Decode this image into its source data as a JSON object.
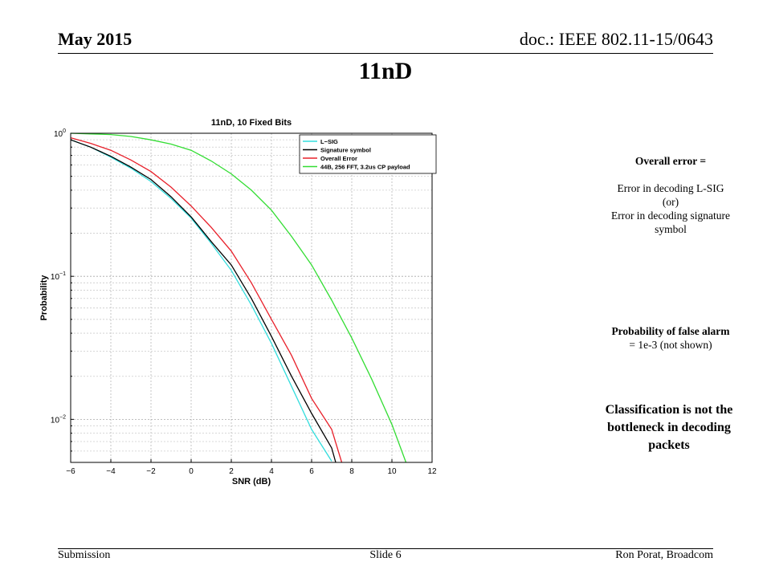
{
  "header": {
    "date": "May 2015",
    "doc": "doc.: IEEE 802.11-15/0643"
  },
  "slide_title": "11nD",
  "footer": {
    "left": "Submission",
    "center": "Slide 6",
    "right": "Ron Porat, Broadcom"
  },
  "notes": {
    "overall_error_title": "Overall error =",
    "overall_error_line1": "Error in decoding L-SIG",
    "overall_error_line2": "(or)",
    "overall_error_line3": "Error in decoding signature",
    "overall_error_line4": "symbol",
    "false_alarm_line1": "Probability of false alarm",
    "false_alarm_line2": "= 1e-3 (not shown)",
    "conclusion_line1": "Classification is not the",
    "conclusion_line2": "bottleneck in decoding",
    "conclusion_line3": "packets"
  },
  "chart_data": {
    "type": "line",
    "title": "11nD, 10 Fixed Bits",
    "xlabel": "SNR (dB)",
    "ylabel": "Probability",
    "xlim": [
      -6,
      12
    ],
    "ylim": [
      0.005,
      1
    ],
    "yscale": "log",
    "grid": true,
    "legend_position": "top-right",
    "x_ticks": [
      "−6",
      "−4",
      "−2",
      "0",
      "2",
      "4",
      "6",
      "8",
      "10",
      "12"
    ],
    "y_ticks": [
      {
        "base": "10",
        "exp": "0"
      },
      {
        "base": "10",
        "exp": "−1"
      },
      {
        "base": "10",
        "exp": "−2"
      }
    ],
    "series": [
      {
        "name": "L−SIG",
        "color": "#33dddd",
        "x": [
          -6,
          -5,
          -4,
          -3,
          -2,
          -1,
          0,
          1,
          2,
          3,
          4,
          5,
          6,
          7
        ],
        "y": [
          0.9,
          0.8,
          0.68,
          0.57,
          0.46,
          0.35,
          0.255,
          0.17,
          0.11,
          0.063,
          0.034,
          0.017,
          0.0085,
          0.0051
        ]
      },
      {
        "name": "Signature symbol",
        "color": "#000000",
        "x": [
          -6,
          -5,
          -4,
          -3,
          -2,
          -1,
          0,
          1,
          2,
          3,
          4,
          5,
          6,
          7,
          7.2
        ],
        "y": [
          0.9,
          0.8,
          0.69,
          0.58,
          0.475,
          0.36,
          0.26,
          0.175,
          0.12,
          0.07,
          0.038,
          0.02,
          0.011,
          0.0063,
          0.005
        ]
      },
      {
        "name": "Overall Error",
        "color": "#e8202a",
        "x": [
          -6,
          -5,
          -4,
          -3,
          -2,
          -1,
          0,
          1,
          2,
          3,
          4,
          5,
          6,
          7,
          7.5
        ],
        "y": [
          0.93,
          0.85,
          0.76,
          0.65,
          0.54,
          0.42,
          0.31,
          0.22,
          0.15,
          0.09,
          0.05,
          0.028,
          0.014,
          0.0085,
          0.005
        ]
      },
      {
        "name": "44B, 256 FFT, 3.2us CP payload",
        "color": "#33dd33",
        "x": [
          -6,
          -5,
          -4,
          -3,
          -2,
          -1,
          0,
          1,
          2,
          3,
          4,
          5,
          6,
          7,
          8,
          9,
          10,
          10.7
        ],
        "y": [
          1.0,
          0.99,
          0.98,
          0.95,
          0.9,
          0.84,
          0.76,
          0.64,
          0.52,
          0.4,
          0.29,
          0.19,
          0.12,
          0.068,
          0.037,
          0.019,
          0.0092,
          0.005
        ]
      }
    ]
  }
}
